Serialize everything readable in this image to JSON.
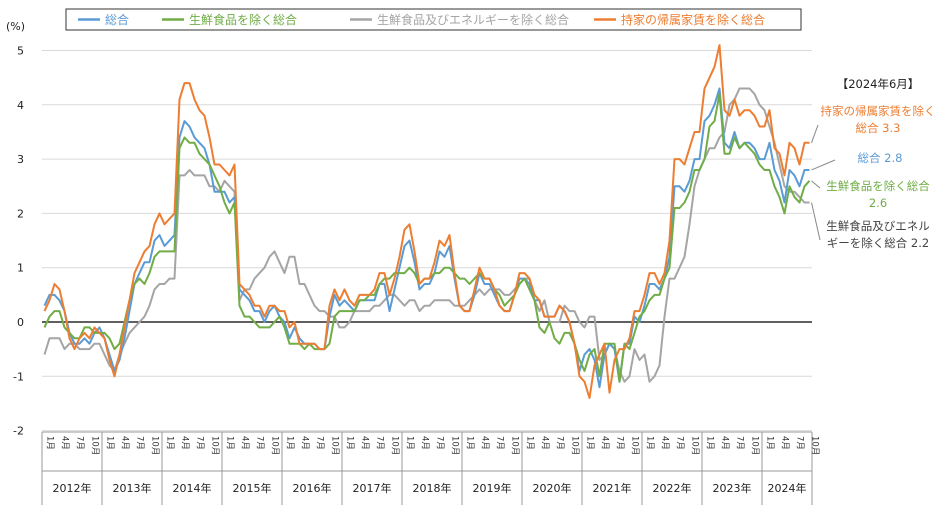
{
  "chart_data": {
    "type": "line",
    "yunit": "(%)",
    "ylim": [
      -2,
      5
    ],
    "yticks": [
      "-2",
      "-1",
      "0",
      "1",
      "2",
      "3",
      "4",
      "5"
    ],
    "grid": true,
    "legend_position": "top",
    "start": "2012-01",
    "month_ticks": [
      "1月",
      "4月",
      "7月",
      "10月"
    ],
    "years": [
      "2012年",
      "2013年",
      "2014年",
      "2015年",
      "2016年",
      "2017年",
      "2018年",
      "2019年",
      "2020年",
      "2021年",
      "2022年",
      "2023年",
      "2024年"
    ],
    "annotation_header": "【2024年6月】",
    "series": [
      {
        "name": "総合",
        "color": "#5b9bd5",
        "label": "総合 2.8",
        "values": [
          0.3,
          0.5,
          0.5,
          0.4,
          0.2,
          -0.2,
          -0.4,
          -0.4,
          -0.3,
          -0.4,
          -0.2,
          -0.1,
          -0.3,
          -0.6,
          -0.9,
          -0.7,
          -0.3,
          0.2,
          0.7,
          0.9,
          1.1,
          1.1,
          1.5,
          1.6,
          1.4,
          1.5,
          1.6,
          3.4,
          3.7,
          3.6,
          3.4,
          3.3,
          3.2,
          2.9,
          2.4,
          2.4,
          2.4,
          2.2,
          2.3,
          0.6,
          0.5,
          0.4,
          0.2,
          0.2,
          0.0,
          0.2,
          0.3,
          0.1,
          0.0,
          -0.3,
          -0.1,
          -0.3,
          -0.4,
          -0.4,
          -0.4,
          -0.5,
          -0.5,
          0.1,
          0.5,
          0.3,
          0.4,
          0.3,
          0.2,
          0.4,
          0.4,
          0.4,
          0.4,
          0.7,
          0.7,
          0.2,
          0.6,
          1.0,
          1.4,
          1.5,
          1.1,
          0.6,
          0.7,
          0.7,
          0.9,
          1.3,
          1.2,
          1.4,
          0.8,
          0.3,
          0.2,
          0.2,
          0.5,
          0.9,
          0.7,
          0.7,
          0.5,
          0.3,
          0.2,
          0.2,
          0.5,
          0.8,
          0.8,
          0.7,
          0.4,
          0.4,
          0.1,
          0.1,
          0.1,
          0.3,
          0.2,
          0.0,
          -0.4,
          -0.9,
          -0.6,
          -0.5,
          -0.7,
          -1.2,
          -0.6,
          -0.4,
          -0.5,
          -1.1,
          -0.4,
          -0.4,
          0.1,
          0.0,
          0.3,
          0.7,
          0.7,
          0.6,
          0.8,
          1.2,
          2.5,
          2.5,
          2.4,
          2.6,
          3.0,
          3.0,
          3.7,
          3.8,
          4.0,
          4.3,
          3.3,
          3.2,
          3.5,
          3.2,
          3.3,
          3.3,
          3.2,
          3.0,
          3.0,
          3.3,
          2.8,
          2.6,
          2.2,
          2.8,
          2.7,
          2.5,
          2.8,
          2.8
        ]
      },
      {
        "name": "生鮮食品を除く総合",
        "color": "#70ad47",
        "label": "生鮮食品を除く総合 2.6",
        "values": [
          -0.1,
          0.1,
          0.2,
          0.2,
          -0.1,
          -0.2,
          -0.3,
          -0.3,
          -0.1,
          -0.1,
          -0.2,
          -0.2,
          -0.2,
          -0.3,
          -0.5,
          -0.4,
          0.0,
          0.4,
          0.7,
          0.8,
          0.7,
          0.9,
          1.2,
          1.3,
          1.3,
          1.3,
          1.3,
          3.2,
          3.4,
          3.3,
          3.3,
          3.1,
          3.0,
          2.9,
          2.7,
          2.5,
          2.2,
          2.0,
          2.2,
          0.3,
          0.1,
          0.1,
          0.0,
          -0.1,
          -0.1,
          -0.1,
          0.0,
          0.1,
          -0.1,
          -0.4,
          -0.4,
          -0.4,
          -0.5,
          -0.4,
          -0.5,
          -0.5,
          -0.5,
          -0.4,
          0.1,
          0.2,
          0.2,
          0.2,
          0.2,
          0.4,
          0.4,
          0.5,
          0.5,
          0.7,
          0.8,
          0.8,
          0.9,
          0.9,
          0.9,
          1.0,
          0.9,
          0.7,
          0.8,
          0.8,
          0.9,
          0.9,
          1.0,
          1.0,
          0.9,
          0.8,
          0.8,
          0.7,
          0.8,
          0.9,
          0.8,
          0.8,
          0.6,
          0.5,
          0.3,
          0.4,
          0.5,
          0.7,
          0.8,
          0.6,
          0.4,
          -0.1,
          -0.2,
          0.0,
          -0.3,
          -0.4,
          -0.2,
          -0.2,
          -0.4,
          -0.7,
          -0.9,
          -0.6,
          -0.5,
          -1.0,
          -0.4,
          -0.4,
          -0.4,
          -1.1,
          -0.4,
          -0.5,
          -0.2,
          0.1,
          0.2,
          0.4,
          0.5,
          0.5,
          0.8,
          1.0,
          2.1,
          2.1,
          2.2,
          2.4,
          2.8,
          2.8,
          3.0,
          3.6,
          3.7,
          4.2,
          3.1,
          3.1,
          3.4,
          3.2,
          3.3,
          3.2,
          3.1,
          2.9,
          2.8,
          2.8,
          2.5,
          2.3,
          2.0,
          2.5,
          2.3,
          2.2,
          2.5,
          2.6
        ]
      },
      {
        "name": "生鮮食品及びエネルギーを除く総合",
        "color": "#a5a5a5",
        "label": "生鮮食品及びエネルギーを除く総合 2.2",
        "values": [
          -0.6,
          -0.3,
          -0.3,
          -0.3,
          -0.5,
          -0.4,
          -0.4,
          -0.5,
          -0.5,
          -0.5,
          -0.4,
          -0.4,
          -0.6,
          -0.8,
          -0.9,
          -0.6,
          -0.4,
          -0.2,
          -0.1,
          0.0,
          0.1,
          0.3,
          0.6,
          0.7,
          0.7,
          0.8,
          0.8,
          2.7,
          2.7,
          2.8,
          2.7,
          2.7,
          2.7,
          2.5,
          2.5,
          2.4,
          2.6,
          2.5,
          2.4,
          0.4,
          0.6,
          0.6,
          0.8,
          0.9,
          1.0,
          1.2,
          1.3,
          1.1,
          0.9,
          1.2,
          1.2,
          0.7,
          0.7,
          0.5,
          0.3,
          0.2,
          0.2,
          0.1,
          0.1,
          -0.1,
          -0.1,
          0.0,
          0.2,
          0.2,
          0.2,
          0.2,
          0.3,
          0.3,
          0.4,
          0.5,
          0.5,
          0.4,
          0.3,
          0.4,
          0.4,
          0.2,
          0.3,
          0.3,
          0.4,
          0.4,
          0.4,
          0.4,
          0.3,
          0.3,
          0.3,
          0.4,
          0.5,
          0.6,
          0.5,
          0.6,
          0.6,
          0.6,
          0.5,
          0.5,
          0.6,
          0.7,
          0.8,
          0.8,
          0.4,
          0.2,
          0.4,
          0.0,
          0.0,
          0.0,
          0.3,
          0.2,
          0.2,
          0.0,
          -0.1,
          0.1,
          0.1,
          -0.7,
          -0.6,
          -0.4,
          -0.5,
          -0.9,
          -1.1,
          -1.0,
          -0.5,
          -0.7,
          -0.6,
          -1.1,
          -1.0,
          -0.8,
          0.1,
          0.8,
          0.8,
          1.0,
          1.2,
          1.8,
          2.5,
          2.8,
          3.0,
          3.2,
          3.2,
          3.4,
          3.5,
          4.0,
          4.1,
          4.3,
          4.3,
          4.3,
          4.2,
          4.0,
          3.9,
          3.6,
          3.3,
          2.9,
          2.5,
          2.4,
          2.4,
          2.3,
          2.2,
          2.2
        ]
      },
      {
        "name": "持家の帰属家賃を除く総合",
        "color": "#ed7d31",
        "label": "持家の帰属家賃を除く総合 3.3",
        "values": [
          0.2,
          0.4,
          0.7,
          0.6,
          0.2,
          -0.3,
          -0.5,
          -0.3,
          -0.2,
          -0.3,
          -0.1,
          -0.2,
          -0.3,
          -0.7,
          -1.0,
          -0.6,
          -0.1,
          0.4,
          0.9,
          1.1,
          1.3,
          1.4,
          1.8,
          2.0,
          1.8,
          1.9,
          2.0,
          4.1,
          4.4,
          4.4,
          4.1,
          3.9,
          3.8,
          3.4,
          2.9,
          2.9,
          2.8,
          2.7,
          2.9,
          0.7,
          0.6,
          0.5,
          0.3,
          0.3,
          0.1,
          0.3,
          0.3,
          0.2,
          0.2,
          -0.1,
          0.0,
          -0.4,
          -0.4,
          -0.4,
          -0.4,
          -0.5,
          -0.5,
          0.3,
          0.6,
          0.4,
          0.6,
          0.4,
          0.3,
          0.5,
          0.5,
          0.5,
          0.6,
          0.9,
          0.9,
          0.5,
          0.8,
          1.2,
          1.7,
          1.8,
          1.3,
          0.7,
          0.8,
          0.8,
          1.1,
          1.5,
          1.4,
          1.6,
          0.9,
          0.3,
          0.2,
          0.2,
          0.6,
          1.0,
          0.8,
          0.8,
          0.6,
          0.3,
          0.2,
          0.2,
          0.5,
          0.9,
          0.9,
          0.8,
          0.5,
          0.4,
          0.1,
          0.1,
          0.1,
          0.3,
          0.2,
          0.0,
          -0.4,
          -1.0,
          -1.1,
          -1.4,
          -0.8,
          -0.6,
          -0.4,
          -1.3,
          -0.7,
          -0.5,
          -0.5,
          -0.3,
          0.2,
          0.2,
          0.5,
          0.9,
          0.9,
          0.7,
          0.9,
          1.5,
          3.0,
          3.0,
          2.9,
          3.2,
          3.5,
          3.5,
          4.3,
          4.5,
          4.7,
          5.1,
          3.9,
          3.8,
          4.1,
          3.8,
          3.9,
          3.9,
          3.8,
          3.6,
          3.6,
          3.9,
          3.2,
          3.1,
          2.7,
          3.3,
          3.2,
          2.9,
          3.3,
          3.3
        ]
      }
    ]
  }
}
